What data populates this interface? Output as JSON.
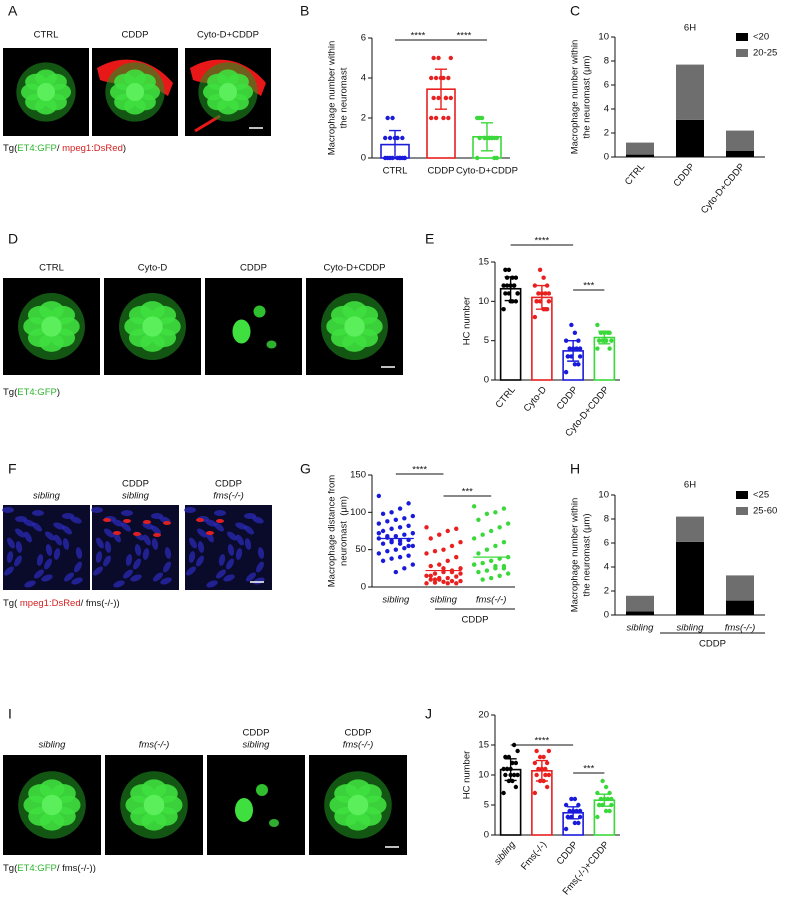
{
  "figure": {
    "panels": [
      {
        "letter": "A",
        "labels": [
          [
            {
              "text": "CTRL"
            }
          ],
          [
            {
              "text": "CDDP"
            }
          ],
          [
            {
              "text": "Cyto-D+CDDP"
            }
          ]
        ],
        "caption": [
          {
            "text": "Tg("
          },
          {
            "text": "ET4:GFP",
            "color": "#2cb52c"
          },
          {
            "text": "/ "
          },
          {
            "text": "mpeg1:DsRed",
            "color": "#d42020"
          },
          {
            "text": ")"
          }
        ]
      },
      {
        "letter": "D",
        "labels": [
          [
            {
              "text": "CTRL"
            }
          ],
          [
            {
              "text": "Cyto-D"
            }
          ],
          [
            {
              "text": "CDDP"
            }
          ],
          [
            {
              "text": "Cyto-D+CDDP"
            }
          ]
        ],
        "caption": [
          {
            "text": "Tg("
          },
          {
            "text": "ET4:GFP",
            "color": "#2cb52c"
          },
          {
            "text": ")"
          }
        ]
      },
      {
        "letter": "F",
        "labels": [
          [
            {
              "text": "sibling",
              "italic": true
            }
          ],
          [
            {
              "text": "CDDP"
            },
            {
              "text": "sibling",
              "italic": true
            }
          ],
          [
            {
              "text": "CDDP"
            },
            {
              "text": "fms(-/-)",
              "italic": true
            }
          ]
        ],
        "caption": [
          {
            "text": "Tg( "
          },
          {
            "text": "mpeg1:DsRed",
            "color": "#d42020"
          },
          {
            "text": "/ fms(-/-))"
          }
        ]
      },
      {
        "letter": "I",
        "labels": [
          [
            {
              "text": "sibling",
              "italic": true
            }
          ],
          [
            {
              "text": "fms(-/-)",
              "italic": true
            }
          ],
          [
            {
              "text": "CDDP"
            },
            {
              "text": "sibling",
              "italic": true
            }
          ],
          [
            {
              "text": "CDDP"
            },
            {
              "text": "fms(-/-)",
              "italic": true
            }
          ]
        ],
        "caption": [
          {
            "text": "Tg("
          },
          {
            "text": "ET4:GFP",
            "color": "#2cb52c"
          },
          {
            "text": "/ fms(-/-))"
          }
        ]
      }
    ]
  },
  "chart_data": [
    {
      "type": "bar",
      "letter": "B",
      "ylabel": [
        "Macrophage number within",
        "the neuromast"
      ],
      "categories": [
        "CTRL",
        "CDDP",
        "Cyto-D+CDDP"
      ],
      "colors": [
        "#1a1adb",
        "#e8201f",
        "#3ad83a"
      ],
      "values": [
        0.67,
        3.44,
        1.06
      ],
      "errors": [
        0.7,
        1.0,
        0.7
      ],
      "points": [
        [
          0,
          0,
          0,
          0,
          0,
          0,
          0,
          1,
          1,
          1,
          1,
          1,
          2,
          2,
          0,
          0,
          1,
          0
        ],
        [
          2,
          2,
          2,
          3,
          3,
          3,
          3,
          4,
          4,
          4,
          4,
          4,
          5,
          5,
          5,
          3,
          4,
          2
        ],
        [
          0,
          0,
          1,
          1,
          1,
          1,
          1,
          1,
          2,
          2,
          1,
          1,
          1,
          2,
          0,
          1
        ]
      ],
      "ylim": [
        0,
        6
      ],
      "yticks": [
        0,
        2,
        4,
        6
      ],
      "significance": [
        "****",
        "****"
      ]
    },
    {
      "type": "stacked_bar",
      "letter": "C",
      "title": "6H",
      "ylabel": [
        "Macrophage number within",
        "the neuromast (μm)"
      ],
      "categories": [
        "CTRL",
        "CDDP",
        "Cyto-D+CDDP"
      ],
      "series": [
        {
          "name": "<20",
          "color": "#000000",
          "values": [
            0.2,
            3.1,
            0.5
          ]
        },
        {
          "name": "20-25",
          "color": "#6e6e6e",
          "values": [
            1.0,
            4.6,
            1.7
          ]
        }
      ],
      "ylim": [
        0,
        10
      ],
      "yticks": [
        0,
        2,
        4,
        6,
        8,
        10
      ]
    },
    {
      "type": "bar",
      "letter": "E",
      "ylabel": [
        "HC number"
      ],
      "categories": [
        "CTRL",
        "Cyto-D",
        "CDDP",
        "Cyto-D+CDDP"
      ],
      "colors": [
        "#000000",
        "#e8201f",
        "#1a1adb",
        "#3ad83a"
      ],
      "values": [
        11.6,
        10.5,
        3.7,
        5.4
      ],
      "errors": [
        1.5,
        1.5,
        1.3,
        0.8
      ],
      "points": [
        [
          9,
          10,
          10,
          11,
          11,
          11,
          12,
          12,
          12,
          12,
          13,
          13,
          14,
          14,
          11,
          12,
          10,
          13
        ],
        [
          8,
          9,
          9,
          10,
          10,
          10,
          11,
          11,
          11,
          12,
          12,
          13,
          14,
          10,
          11,
          9
        ],
        [
          1,
          2,
          2,
          3,
          3,
          3,
          4,
          4,
          4,
          5,
          5,
          6,
          7,
          3,
          4
        ],
        [
          4,
          4,
          5,
          5,
          5,
          5,
          6,
          6,
          6,
          7,
          6,
          5
        ]
      ],
      "ylim": [
        0,
        15
      ],
      "yticks": [
        0,
        5,
        10,
        15
      ],
      "significance": [
        "****",
        "***"
      ]
    },
    {
      "type": "dot_plot",
      "letter": "G",
      "ylabel": [
        "Macrophage distance from",
        "neuromast  (μm)"
      ],
      "categories": [
        "sibling",
        "sibling",
        "fms(-/-)"
      ],
      "category_italic": [
        true,
        true,
        true
      ],
      "group_label": "CDDP",
      "colors": [
        "#1a1adb",
        "#e8201f",
        "#3ad83a"
      ],
      "values": [
        65,
        22,
        40
      ],
      "points": [
        [
          122,
          112,
          105,
          100,
          98,
          95,
          92,
          90,
          88,
          85,
          82,
          80,
          78,
          75,
          72,
          70,
          68,
          66,
          65,
          63,
          62,
          60,
          58,
          55,
          52,
          50,
          48,
          45,
          42,
          40,
          38,
          35,
          30,
          25,
          20,
          68,
          72,
          55,
          58,
          62
        ],
        [
          80,
          78,
          75,
          70,
          65,
          60,
          55,
          50,
          48,
          45,
          40,
          35,
          30,
          28,
          25,
          22,
          20,
          18,
          15,
          14,
          12,
          10,
          10,
          8,
          8,
          7,
          6,
          5,
          5,
          5,
          12,
          15,
          18,
          20,
          25,
          10
        ],
        [
          108,
          105,
          100,
          98,
          90,
          85,
          80,
          75,
          70,
          65,
          60,
          55,
          50,
          45,
          40,
          38,
          35,
          32,
          30,
          28,
          25,
          22,
          20,
          18,
          15,
          12,
          10,
          30,
          25,
          28
        ]
      ],
      "ylim": [
        0,
        150
      ],
      "yticks": [
        0,
        50,
        100,
        150
      ],
      "significance": [
        "****",
        "***"
      ]
    },
    {
      "type": "stacked_bar",
      "letter": "H",
      "title": "6H",
      "ylabel": [
        "Macrophage number within",
        "the neuromast (μm)"
      ],
      "categories": [
        "sibling",
        "sibling",
        "fms(-/-)"
      ],
      "category_italic": [
        true,
        true,
        true
      ],
      "group_label": "CDDP",
      "series": [
        {
          "name": "<25",
          "color": "#000000",
          "values": [
            0.3,
            6.1,
            1.2
          ]
        },
        {
          "name": "25-60",
          "color": "#6e6e6e",
          "values": [
            1.3,
            2.1,
            2.1
          ]
        }
      ],
      "ylim": [
        0,
        10
      ],
      "yticks": [
        0,
        2,
        4,
        6,
        8,
        10
      ]
    },
    {
      "type": "bar",
      "letter": "J",
      "ylabel": [
        "HC number"
      ],
      "categories": [
        "sibling",
        "Fms(-/-)",
        "CDDP",
        "Fms(-/-)+CDDP"
      ],
      "category_italic": [
        true,
        false,
        false,
        false
      ],
      "colors": [
        "#000000",
        "#e8201f",
        "#1a1adb",
        "#3ad83a"
      ],
      "values": [
        10.9,
        10.7,
        3.7,
        5.8
      ],
      "errors": [
        1.8,
        1.7,
        1.0,
        1.0
      ],
      "points": [
        [
          7,
          8,
          9,
          9,
          10,
          10,
          10,
          11,
          11,
          11,
          12,
          12,
          13,
          13,
          14,
          15,
          10,
          11
        ],
        [
          7,
          8,
          9,
          9,
          10,
          10,
          11,
          11,
          11,
          12,
          12,
          13,
          13,
          14,
          14,
          10,
          11
        ],
        [
          1,
          2,
          2,
          3,
          3,
          3,
          4,
          4,
          4,
          5,
          5,
          6,
          6,
          3,
          4
        ],
        [
          3,
          4,
          4,
          5,
          5,
          5,
          6,
          6,
          6,
          7,
          7,
          8,
          9,
          5,
          6
        ]
      ],
      "ylim": [
        0,
        20
      ],
      "yticks": [
        0,
        5,
        10,
        15,
        20
      ],
      "significance": [
        "****",
        "***"
      ]
    }
  ]
}
